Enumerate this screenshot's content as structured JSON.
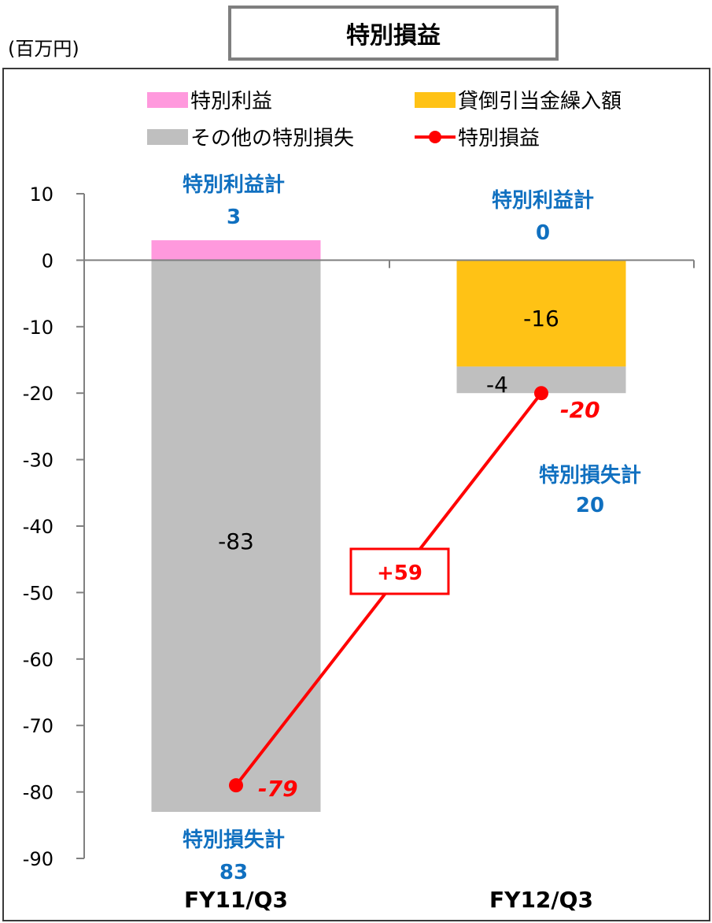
{
  "unit_label": "(百万円)",
  "title": "特別損益",
  "chart_data": {
    "type": "bar",
    "stacked": true,
    "categories": [
      "FY11/Q3",
      "FY12/Q3"
    ],
    "ylim": [
      -90,
      10
    ],
    "yticks": [
      10,
      0,
      -10,
      -20,
      -30,
      -40,
      -50,
      -60,
      -70,
      -80,
      -90
    ],
    "grid": false,
    "legend_position": "top",
    "series": [
      {
        "name": "特別利益",
        "kind": "bar",
        "color": "#ff99dd",
        "values": [
          3,
          0
        ]
      },
      {
        "name": "貸倒引当金繰入額",
        "kind": "bar",
        "color": "#ffc215",
        "values": [
          0,
          -16
        ]
      },
      {
        "name": "その他の特別損失",
        "kind": "bar",
        "color": "#bfbfbf",
        "values": [
          -83,
          -4
        ]
      },
      {
        "name": "特別損益",
        "kind": "line",
        "color": "#ff0000",
        "values": [
          -79,
          -20
        ]
      }
    ],
    "bar_labels": [
      {
        "category": 0,
        "series": 2,
        "text": "-83"
      },
      {
        "category": 1,
        "series": 1,
        "text": "-16"
      },
      {
        "category": 1,
        "series": 2,
        "text": "-4"
      }
    ],
    "line_labels": [
      "-79",
      "-20"
    ],
    "annotations": {
      "gain_total": [
        {
          "title": "特別利益計",
          "value": "3"
        },
        {
          "title": "特別利益計",
          "value": "0"
        }
      ],
      "loss_total": [
        {
          "title": "特別損失計",
          "value": "83"
        },
        {
          "title": "特別損失計",
          "value": "20"
        }
      ],
      "change": "+59"
    }
  }
}
